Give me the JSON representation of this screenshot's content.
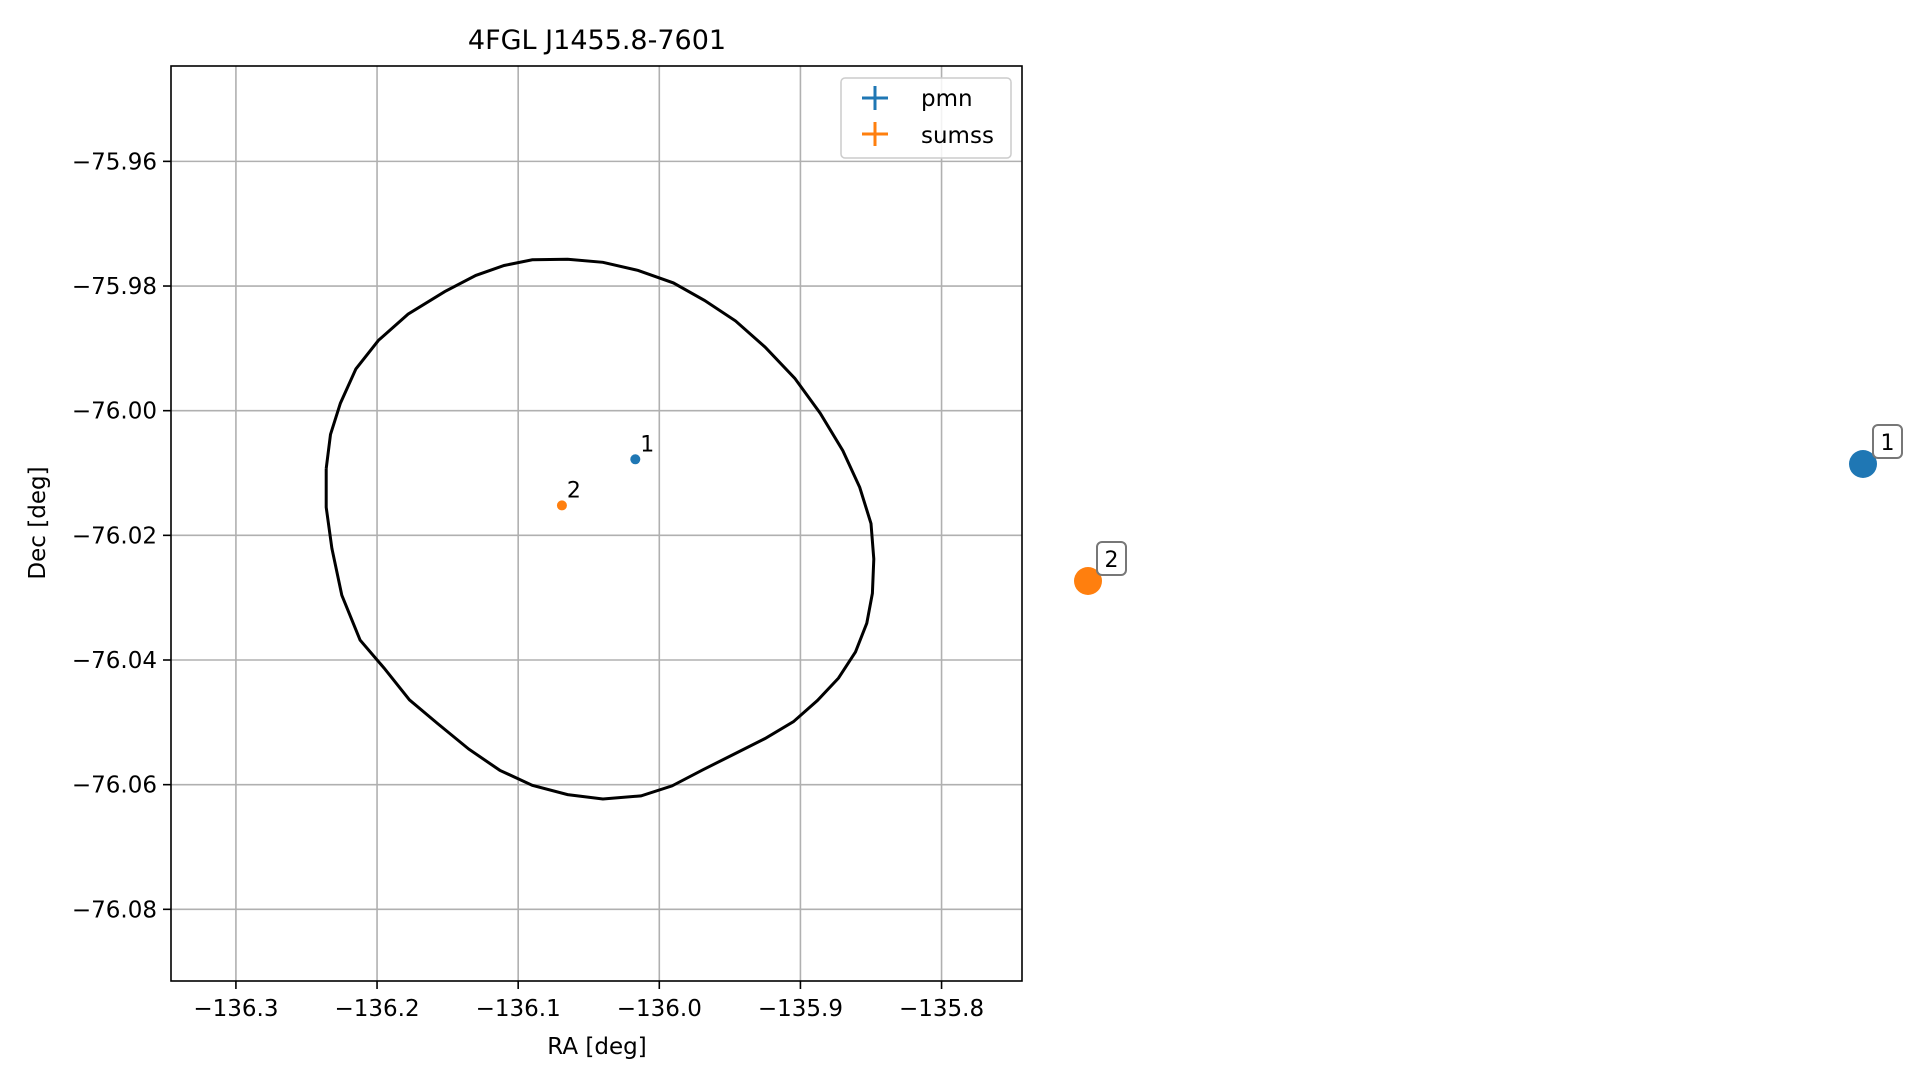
{
  "chart_data": {
    "type": "scatter",
    "title": "4FGL J1455.8-7601",
    "xlabel": "RA [deg]",
    "ylabel": "Dec [deg]",
    "xlim": [
      -136.346,
      -135.743
    ],
    "ylim": [
      -76.0915,
      -75.9447
    ],
    "xticks": [
      -136.3,
      -136.2,
      -136.1,
      -136.0,
      -135.9,
      -135.8
    ],
    "xtick_labels": [
      "−136.3",
      "−136.2",
      "−136.1",
      "−136.0",
      "−135.9",
      "−135.8"
    ],
    "yticks": [
      -75.96,
      -75.98,
      -76.0,
      -76.02,
      -76.04,
      -76.06,
      -76.08
    ],
    "ytick_labels": [
      "−75.96",
      "−75.98",
      "−76.00",
      "−76.02",
      "−76.04",
      "−76.06",
      "−76.08"
    ],
    "grid": true,
    "legend_position": "top-right",
    "series": [
      {
        "name": "pmn",
        "color": "#1f77b4",
        "points": [
          {
            "x": -136.017,
            "y": -76.0078,
            "label": "1"
          }
        ]
      },
      {
        "name": "sumss",
        "color": "#ff7f0e",
        "points": [
          {
            "x": -136.069,
            "y": -76.0152,
            "label": "2"
          }
        ]
      }
    ],
    "error_ellipse": {
      "color": "#000000",
      "center": [
        -136.0,
        -76.018
      ],
      "x": [
        -136.236,
        -136.233,
        -136.226,
        -136.215,
        -136.199,
        -136.178,
        -136.152,
        -136.13,
        -136.11,
        -136.09,
        -136.065,
        -136.04,
        -136.015,
        -135.99,
        -135.968,
        -135.946,
        -135.925,
        -135.904,
        -135.886,
        -135.87,
        -135.858,
        -135.85,
        -135.848,
        -135.849,
        -135.853,
        -135.861,
        -135.873,
        -135.888,
        -135.905,
        -135.925,
        -135.947,
        -135.969,
        -135.991,
        -136.013,
        -136.04,
        -136.065,
        -136.09,
        -136.113,
        -136.135,
        -136.157,
        -136.177,
        -136.195,
        -136.212,
        -136.225,
        -136.232,
        -136.236,
        -136.236
      ],
      "y": [
        -76.0093,
        -76.0038,
        -75.9988,
        -75.9933,
        -75.9887,
        -75.9845,
        -75.9809,
        -75.9783,
        -75.9767,
        -75.9758,
        -75.9757,
        -75.9762,
        -75.9775,
        -75.9795,
        -75.9823,
        -75.9856,
        -75.9898,
        -75.9948,
        -76.0004,
        -76.0064,
        -76.0123,
        -76.0181,
        -76.0238,
        -76.0293,
        -76.0341,
        -76.0387,
        -76.0429,
        -76.0465,
        -76.0499,
        -76.0526,
        -76.0551,
        -76.0576,
        -76.0602,
        -76.0618,
        -76.0623,
        -76.0616,
        -76.0601,
        -76.0577,
        -76.0543,
        -76.0502,
        -76.0464,
        -76.0413,
        -76.0368,
        -76.0296,
        -76.0221,
        -76.0155,
        -76.0093
      ]
    },
    "side_markers": [
      {
        "label": "1",
        "color": "#1f77b4"
      },
      {
        "label": "2",
        "color": "#ff7f0e"
      }
    ]
  }
}
